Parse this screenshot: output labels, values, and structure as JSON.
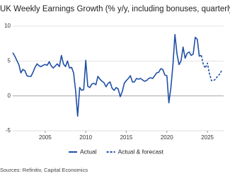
{
  "chart_data": {
    "type": "line",
    "title": "UK Weekly Earnings Growth (% y/y, including bonuses, quarterly)",
    "source": "Sources: Refinitiv, Capital Economics",
    "xlim": [
      2001,
      2027
    ],
    "xticks": [
      2005,
      2010,
      2015,
      2020,
      2025
    ],
    "ylim": [
      -5,
      10
    ],
    "yticks": [
      10,
      5,
      0,
      -5
    ],
    "grid": true,
    "series": [
      {
        "name": "Actual",
        "color": "#1f4fa6",
        "dash": false,
        "x": [
          2001,
          2001.25,
          2001.5,
          2001.75,
          2002,
          2002.25,
          2002.5,
          2002.75,
          2003,
          2003.25,
          2003.5,
          2003.75,
          2004,
          2004.25,
          2004.5,
          2004.75,
          2005,
          2005.25,
          2005.5,
          2005.75,
          2006,
          2006.25,
          2006.5,
          2006.75,
          2007,
          2007.25,
          2007.5,
          2007.75,
          2008,
          2008.25,
          2008.5,
          2008.75,
          2009,
          2009.25,
          2009.5,
          2009.75,
          2010,
          2010.25,
          2010.5,
          2010.75,
          2011,
          2011.25,
          2011.5,
          2011.75,
          2012,
          2012.25,
          2012.5,
          2012.75,
          2013,
          2013.25,
          2013.5,
          2013.75,
          2014,
          2014.25,
          2014.5,
          2014.75,
          2015,
          2015.25,
          2015.5,
          2015.75,
          2016,
          2016.25,
          2016.5,
          2016.75,
          2017,
          2017.25,
          2017.5,
          2017.75,
          2018,
          2018.25,
          2018.5,
          2018.75,
          2019,
          2019.25,
          2019.5,
          2019.75,
          2020,
          2020.25,
          2020.5,
          2020.75,
          2021,
          2021.25,
          2021.5,
          2021.75,
          2022,
          2022.25,
          2022.5,
          2022.75,
          2023,
          2023.25,
          2023.5,
          2023.75,
          2024,
          2024.25
        ],
        "values": [
          6.2,
          5.7,
          5.1,
          4.5,
          3.3,
          3.8,
          3.6,
          2.9,
          2.8,
          2.8,
          3.4,
          4.1,
          4.6,
          4.3,
          4.2,
          4.4,
          4.5,
          4.4,
          4.9,
          4.3,
          4.0,
          4.3,
          4.6,
          4.2,
          5.8,
          4.6,
          4.2,
          5.0,
          4.0,
          4.1,
          3.3,
          0.8,
          -2.9,
          1.2,
          0.8,
          0.9,
          5.1,
          1.4,
          1.2,
          1.7,
          1.8,
          1.6,
          2.8,
          2.4,
          2.1,
          1.9,
          1.3,
          1.8,
          2.0,
          1.1,
          0.8,
          1.2,
          1.0,
          -0.1,
          0.6,
          1.8,
          2.2,
          2.5,
          2.9,
          2.0,
          2.0,
          2.5,
          2.4,
          2.5,
          2.3,
          2.1,
          2.2,
          2.5,
          2.6,
          2.5,
          2.9,
          3.3,
          3.4,
          3.9,
          3.8,
          3.0,
          2.9,
          -1.0,
          1.2,
          4.5,
          8.8,
          6.0,
          4.5,
          5.0,
          7.0,
          5.4,
          6.1,
          6.3,
          5.8,
          6.0,
          8.4,
          8.1,
          5.7,
          5.8
        ]
      },
      {
        "name": "Actual & forecast",
        "color": "#1f4fa6",
        "dash": true,
        "x": [
          2024.25,
          2024.5,
          2024.75,
          2025,
          2025.25,
          2025.5,
          2025.75,
          2026,
          2026.25,
          2026.5,
          2026.75
        ],
        "values": [
          5.8,
          4.5,
          4.0,
          4.7,
          3.2,
          2.2,
          2.2,
          2.4,
          2.8,
          3.1,
          3.6
        ]
      }
    ]
  }
}
